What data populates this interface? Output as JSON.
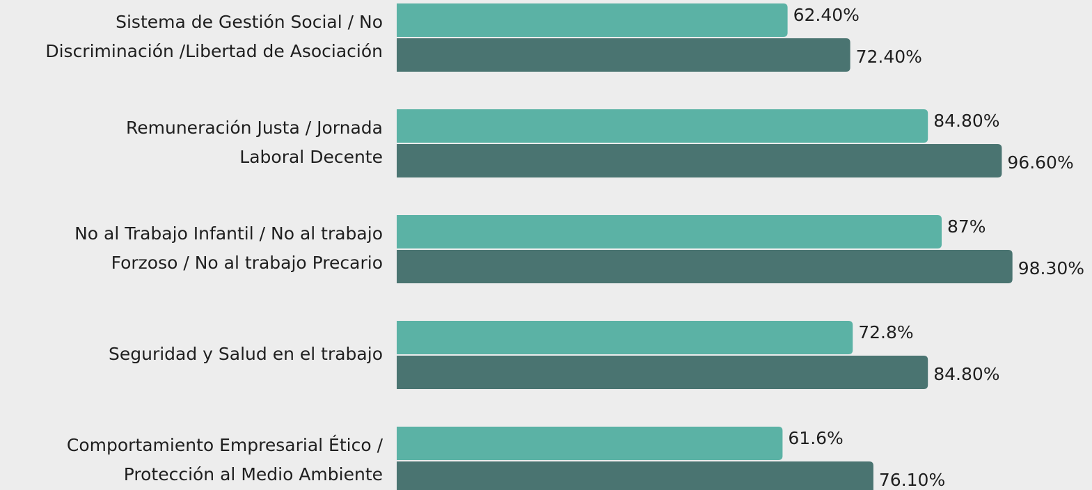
{
  "chart_data": {
    "type": "bar",
    "orientation": "horizontal",
    "categories": [
      [
        "Sistema de Gestión Social / No",
        "Discriminación /Libertad de Asociación"
      ],
      [
        "Remuneración Justa / Jornada",
        "Laboral Decente"
      ],
      [
        "No al Trabajo Infantil / No al trabajo",
        "Forzoso / No al trabajo Precario"
      ],
      [
        "Seguridad y Salud en el trabajo"
      ],
      [
        "Comportamiento Empresarial Ético /",
        "Protección al Medio Ambiente"
      ]
    ],
    "series": [
      {
        "color": "#5bb2a5",
        "values": [
          62.4,
          84.8,
          87,
          72.8,
          61.6
        ],
        "value_labels": [
          "62.40%",
          "84.80%",
          "87%",
          "72.8%",
          "61.6%"
        ]
      },
      {
        "color": "#4a7471",
        "values": [
          72.4,
          96.6,
          98.3,
          84.8,
          76.1
        ],
        "value_labels": [
          "72.40%",
          "96.60%",
          "98.30%",
          "84.80%",
          "76.10%"
        ]
      }
    ],
    "xlim": [
      0,
      100
    ]
  }
}
